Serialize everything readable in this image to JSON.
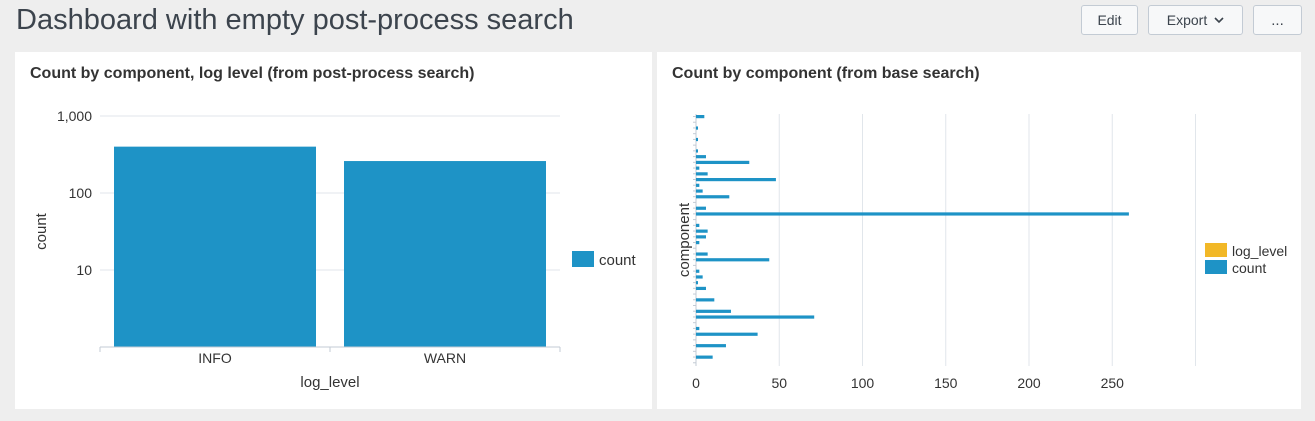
{
  "header": {
    "title": "Dashboard with empty post-process search",
    "edit_label": "Edit",
    "export_label": "Export",
    "more_label": "..."
  },
  "panels": [
    {
      "title": "Count by component, log level (from post-process search)"
    },
    {
      "title": "Count by component (from base search)"
    }
  ],
  "colors": {
    "bar": "#1e93c6",
    "log_level": "#f2b827",
    "grid": "#e1e6eb",
    "axis": "#c3cbd4"
  },
  "chart_data": [
    {
      "type": "bar",
      "title": "Count by component, log level (from post-process search)",
      "xlabel": "log_level",
      "ylabel": "count",
      "scale": "log",
      "ylim": [
        1,
        1000
      ],
      "yticks": [
        "10",
        "100",
        "1,000"
      ],
      "categories": [
        "INFO",
        "WARN"
      ],
      "series": [
        {
          "name": "count",
          "values": [
            400,
            260
          ]
        }
      ],
      "legend": {
        "position": "right",
        "items": [
          "count"
        ]
      },
      "grid": true
    },
    {
      "type": "bar",
      "orientation": "horizontal",
      "title": "Count by component (from base search)",
      "xlabel": "",
      "ylabel": "component",
      "xlim": [
        0,
        300
      ],
      "xticks": [
        "0",
        "50",
        "100",
        "150",
        "200",
        "250"
      ],
      "category_count": 44,
      "series": [
        {
          "name": "log_level",
          "values": []
        },
        {
          "name": "count",
          "values": [
            5,
            0,
            1,
            0,
            1,
            0,
            1,
            6,
            32,
            2,
            7,
            48,
            2,
            4,
            20,
            0,
            6,
            260,
            0,
            2,
            7,
            6,
            2,
            0,
            7,
            44,
            0,
            2,
            4,
            1,
            6,
            0,
            11,
            0,
            21,
            71,
            0,
            2,
            37,
            0,
            18,
            0,
            10,
            0
          ]
        }
      ],
      "legend": {
        "position": "right",
        "items": [
          "log_level",
          "count"
        ]
      },
      "grid": true
    }
  ]
}
